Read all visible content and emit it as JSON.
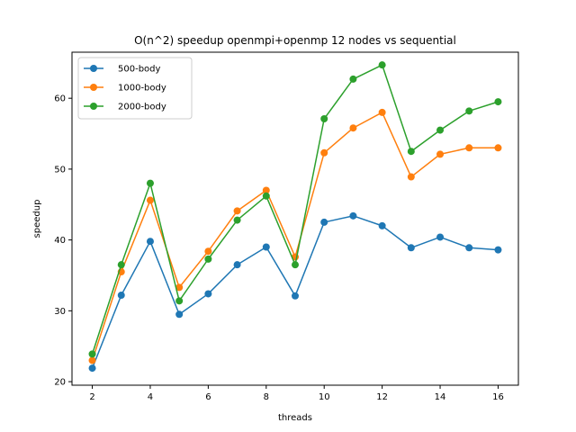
{
  "chart_data": {
    "type": "line",
    "title": "O(n^2) speedup openmpi+openmp 12 nodes vs sequential",
    "xlabel": "threads",
    "ylabel": "speedup",
    "xlim": [
      1.3,
      16.7
    ],
    "ylim": [
      19.5,
      66.5
    ],
    "xticks": [
      2,
      4,
      6,
      8,
      10,
      12,
      14,
      16
    ],
    "yticks": [
      20,
      30,
      40,
      50,
      60
    ],
    "grid": false,
    "legend_position": "top-left",
    "x": [
      2,
      3,
      4,
      5,
      6,
      7,
      8,
      9,
      10,
      11,
      12,
      13,
      14,
      15,
      16
    ],
    "series": [
      {
        "name": "500-body",
        "color": "#1f77b4",
        "values": [
          21.9,
          32.2,
          39.8,
          29.5,
          32.4,
          36.5,
          39.0,
          32.1,
          42.5,
          43.4,
          42.0,
          38.9,
          40.4,
          38.9,
          38.6
        ]
      },
      {
        "name": "1000-body",
        "color": "#ff7f0e",
        "values": [
          23.0,
          35.5,
          45.6,
          33.3,
          38.4,
          44.1,
          47.0,
          37.6,
          52.3,
          55.8,
          58.0,
          48.9,
          52.1,
          53.0,
          53.0
        ]
      },
      {
        "name": "2000-body",
        "color": "#2ca02c",
        "values": [
          23.9,
          36.5,
          48.0,
          31.4,
          37.3,
          42.8,
          46.2,
          36.5,
          57.1,
          62.7,
          64.7,
          52.5,
          55.5,
          58.2,
          59.5
        ]
      }
    ]
  }
}
